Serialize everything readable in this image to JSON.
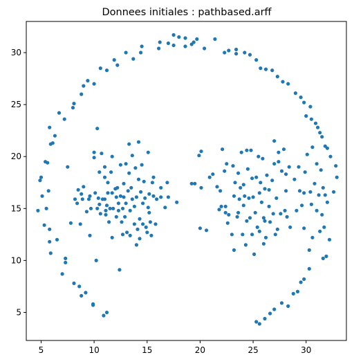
{
  "chart_data": {
    "type": "scatter",
    "title": "Donnees initiales : pathbased.arff",
    "xlabel": "",
    "ylabel": "",
    "xlim": [
      3.6,
      33.8
    ],
    "ylim": [
      2.3,
      33.0
    ],
    "xticks": [
      5,
      10,
      15,
      20,
      25,
      30
    ],
    "yticks": [
      5,
      10,
      15,
      20,
      25,
      30
    ],
    "grid": false,
    "marker_color": "#1f77b4",
    "series": [
      {
        "points": [
          [
            4.7,
            14.8
          ],
          [
            4.9,
            17.7
          ],
          [
            5.0,
            18.0
          ],
          [
            5.1,
            16.2
          ],
          [
            5.3,
            13.4
          ],
          [
            5.4,
            19.5
          ],
          [
            5.5,
            15.0
          ],
          [
            5.6,
            19.4
          ],
          [
            5.7,
            16.7
          ],
          [
            5.8,
            13.0
          ],
          [
            5.8,
            11.8
          ],
          [
            5.9,
            10.7
          ],
          [
            5.8,
            22.8
          ],
          [
            5.9,
            21.2
          ],
          [
            6.1,
            21.3
          ],
          [
            6.3,
            22.0
          ],
          [
            6.5,
            12.0
          ],
          [
            6.7,
            24.2
          ],
          [
            7.0,
            8.7
          ],
          [
            7.2,
            23.6
          ],
          [
            7.3,
            9.8
          ],
          [
            7.3,
            10.2
          ],
          [
            7.5,
            19.0
          ],
          [
            7.8,
            13.6
          ],
          [
            8.0,
            24.7
          ],
          [
            8.1,
            25.1
          ],
          [
            8.1,
            7.8
          ],
          [
            8.2,
            15.9
          ],
          [
            8.4,
            15.5
          ],
          [
            8.5,
            16.8
          ],
          [
            8.6,
            7.5
          ],
          [
            8.7,
            13.5
          ],
          [
            8.8,
            26.0
          ],
          [
            8.8,
            6.6
          ],
          [
            8.8,
            16.4
          ],
          [
            8.9,
            15.9
          ],
          [
            9.0,
            17.1
          ],
          [
            9.0,
            26.8
          ],
          [
            9.2,
            6.9
          ],
          [
            9.3,
            14.7
          ],
          [
            9.4,
            27.3
          ],
          [
            9.5,
            15.9
          ],
          [
            9.6,
            12.4
          ],
          [
            9.6,
            16.2
          ],
          [
            9.7,
            15.0
          ],
          [
            9.9,
            5.8
          ],
          [
            9.9,
            5.7
          ],
          [
            10.0,
            27.0
          ],
          [
            10.0,
            19.9
          ],
          [
            10.0,
            20.4
          ],
          [
            10.1,
            16.5
          ],
          [
            10.2,
            10.0
          ],
          [
            10.3,
            22.7
          ],
          [
            10.3,
            15.0
          ],
          [
            10.4,
            16.0
          ],
          [
            10.5,
            18.5
          ],
          [
            10.5,
            15.4
          ],
          [
            10.6,
            28.5
          ],
          [
            10.6,
            14.5
          ],
          [
            10.7,
            20.3
          ],
          [
            10.8,
            15.9
          ],
          [
            10.9,
            4.7
          ],
          [
            11.0,
            19.0
          ],
          [
            11.0,
            15.9
          ],
          [
            11.0,
            18.0
          ],
          [
            11.1,
            14.8
          ],
          [
            11.1,
            14.4
          ],
          [
            11.2,
            15.3
          ],
          [
            11.2,
            5.0
          ],
          [
            11.2,
            28.3
          ],
          [
            11.3,
            16.5
          ],
          [
            11.3,
            17.5
          ],
          [
            11.4,
            13.7
          ],
          [
            11.5,
            15.0
          ],
          [
            11.6,
            18.5
          ],
          [
            11.7,
            12.2
          ],
          [
            11.7,
            16.5
          ],
          [
            11.7,
            20.0
          ],
          [
            11.8,
            15.0
          ],
          [
            11.9,
            29.3
          ],
          [
            12.0,
            16.9
          ],
          [
            12.1,
            14.2
          ],
          [
            12.1,
            16.1
          ],
          [
            12.2,
            28.8
          ],
          [
            12.2,
            17.0
          ],
          [
            12.3,
            14.8
          ],
          [
            12.3,
            15.5
          ],
          [
            12.4,
            9.1
          ],
          [
            12.5,
            16.2
          ],
          [
            12.5,
            19.2
          ],
          [
            12.6,
            13.7
          ],
          [
            12.7,
            15.0
          ],
          [
            12.7,
            12.5
          ],
          [
            12.8,
            17.4
          ],
          [
            12.8,
            16.1
          ],
          [
            12.9,
            14.2
          ],
          [
            13.0,
            15.5
          ],
          [
            13.0,
            19.3
          ],
          [
            13.0,
            30.0
          ],
          [
            13.1,
            12.7
          ],
          [
            13.2,
            16.7
          ],
          [
            13.3,
            21.2
          ],
          [
            13.3,
            18.4
          ],
          [
            13.4,
            14.8
          ],
          [
            13.4,
            12.4
          ],
          [
            13.5,
            17.0
          ],
          [
            13.6,
            20.1
          ],
          [
            13.6,
            15.9
          ],
          [
            13.7,
            29.4
          ],
          [
            13.8,
            15.2
          ],
          [
            13.8,
            13.5
          ],
          [
            13.9,
            18.9
          ],
          [
            14.0,
            11.5
          ],
          [
            14.0,
            16.1
          ],
          [
            14.1,
            13.0
          ],
          [
            14.2,
            21.4
          ],
          [
            14.2,
            17.8
          ],
          [
            14.3,
            14.0
          ],
          [
            14.3,
            12.1
          ],
          [
            14.4,
            16.6
          ],
          [
            14.4,
            30.0
          ],
          [
            14.5,
            30.6
          ],
          [
            14.5,
            19.2
          ],
          [
            14.6,
            13.5
          ],
          [
            14.6,
            15.5
          ],
          [
            14.7,
            17.6
          ],
          [
            14.8,
            16.0
          ],
          [
            14.9,
            13.2
          ],
          [
            15.0,
            12.7
          ],
          [
            15.1,
            15.1
          ],
          [
            15.1,
            20.4
          ],
          [
            15.2,
            16.4
          ],
          [
            15.2,
            14.6
          ],
          [
            15.3,
            13.7
          ],
          [
            15.4,
            12.4
          ],
          [
            15.5,
            17.5
          ],
          [
            15.6,
            18.0
          ],
          [
            15.6,
            16.2
          ],
          [
            15.8,
            13.5
          ],
          [
            15.9,
            15.9
          ],
          [
            16.1,
            30.4
          ],
          [
            16.2,
            31.0
          ],
          [
            16.3,
            17.0
          ],
          [
            16.3,
            16.1
          ],
          [
            16.7,
            15.1
          ],
          [
            16.9,
            17.5
          ],
          [
            17.0,
            16.1
          ],
          [
            17.5,
            30.7
          ],
          [
            17.5,
            31.7
          ],
          [
            17.8,
            15.6
          ],
          [
            18.0,
            31.5
          ],
          [
            18.6,
            30.6
          ],
          [
            19.2,
            17.4
          ],
          [
            19.4,
            31.0
          ],
          [
            19.5,
            17.4
          ],
          [
            19.7,
            31.3
          ],
          [
            19.9,
            20.1
          ],
          [
            20.0,
            13.1
          ],
          [
            20.1,
            20.5
          ],
          [
            20.1,
            17.0
          ],
          [
            20.4,
            30.4
          ],
          [
            20.6,
            12.9
          ],
          [
            20.9,
            18.0
          ],
          [
            21.2,
            18.3
          ],
          [
            21.4,
            31.3
          ],
          [
            21.6,
            17.1
          ],
          [
            21.8,
            14.9
          ],
          [
            21.9,
            16.7
          ],
          [
            22.0,
            15.2
          ],
          [
            22.1,
            20.7
          ],
          [
            22.3,
            18.6
          ],
          [
            22.4,
            15.2
          ],
          [
            22.4,
            14.6
          ],
          [
            22.5,
            19.3
          ],
          [
            22.6,
            13.6
          ],
          [
            22.7,
            14.4
          ],
          [
            23.0,
            12.5
          ],
          [
            23.1,
            19.1
          ],
          [
            23.2,
            16.2
          ],
          [
            23.2,
            11.0
          ],
          [
            23.3,
            17.5
          ],
          [
            23.4,
            30.3
          ],
          [
            23.5,
            14.2
          ],
          [
            23.6,
            18.4
          ],
          [
            23.6,
            14.6
          ],
          [
            23.7,
            15.9
          ],
          [
            23.8,
            17.0
          ],
          [
            23.9,
            20.4
          ],
          [
            24.0,
            12.5
          ],
          [
            24.1,
            17.3
          ],
          [
            24.1,
            15.3
          ],
          [
            24.2,
            16.2
          ],
          [
            24.3,
            11.5
          ],
          [
            24.4,
            13.8
          ],
          [
            24.4,
            20.6
          ],
          [
            24.5,
            18.8
          ],
          [
            24.6,
            16.0
          ],
          [
            24.7,
            14.1
          ],
          [
            24.8,
            20.6
          ],
          [
            24.9,
            17.9
          ],
          [
            24.9,
            12.5
          ],
          [
            25.0,
            16.1
          ],
          [
            25.1,
            10.6
          ],
          [
            25.2,
            14.6
          ],
          [
            25.3,
            18.0
          ],
          [
            25.4,
            13.2
          ],
          [
            25.5,
            20.0
          ],
          [
            25.6,
            16.5
          ],
          [
            25.6,
            12.8
          ],
          [
            25.7,
            17.5
          ],
          [
            25.8,
            15.6
          ],
          [
            25.9,
            19.8
          ],
          [
            26.0,
            11.6
          ],
          [
            26.0,
            14.1
          ],
          [
            26.1,
            16.9
          ],
          [
            26.1,
            13.8
          ],
          [
            26.2,
            12.2
          ],
          [
            26.3,
            18.2
          ],
          [
            26.5,
            16.8
          ],
          [
            26.5,
            15.2
          ],
          [
            26.6,
            13.7
          ],
          [
            26.8,
            17.7
          ],
          [
            26.9,
            14.5
          ],
          [
            27.0,
            19.3
          ],
          [
            27.0,
            21.5
          ],
          [
            27.1,
            12.5
          ],
          [
            27.2,
            16.0
          ],
          [
            27.3,
            13.0
          ],
          [
            27.4,
            20.4
          ],
          [
            27.4,
            19.5
          ],
          [
            27.6,
            14.5
          ],
          [
            27.7,
            18.6
          ],
          [
            27.9,
            20.7
          ],
          [
            28.0,
            14.8
          ],
          [
            28.1,
            16.7
          ],
          [
            28.1,
            18.3
          ],
          [
            28.2,
            14.2
          ],
          [
            28.4,
            19.0
          ],
          [
            28.5,
            13.2
          ],
          [
            28.9,
            17.8
          ],
          [
            29.1,
            14.8
          ],
          [
            29.3,
            19.0
          ],
          [
            29.4,
            16.7
          ],
          [
            29.6,
            15.3
          ],
          [
            29.8,
            16.5
          ],
          [
            29.8,
            13.1
          ],
          [
            29.9,
            18.5
          ],
          [
            30.1,
            20.2
          ],
          [
            30.3,
            11.0
          ],
          [
            30.4,
            16.6
          ],
          [
            30.5,
            15.4
          ],
          [
            30.6,
            12.2
          ],
          [
            30.8,
            17.4
          ],
          [
            31.0,
            14.8
          ],
          [
            31.0,
            19.3
          ],
          [
            31.2,
            16.3
          ],
          [
            31.3,
            12.8
          ],
          [
            31.5,
            14.4
          ],
          [
            31.6,
            17.0
          ],
          [
            31.7,
            13.2
          ],
          [
            31.8,
            16.3
          ],
          [
            32.0,
            15.6
          ],
          [
            32.2,
            12.0
          ],
          [
            32.6,
            16.6
          ],
          [
            32.8,
            19.1
          ],
          [
            32.9,
            18.0
          ]
        ]
      },
      {
        "points": [
          [
            17.0,
            30.9
          ],
          [
            18.6,
            31.4
          ],
          [
            19.2,
            30.8
          ],
          [
            22.3,
            30.0
          ],
          [
            22.7,
            30.2
          ],
          [
            23.4,
            29.9
          ],
          [
            24.2,
            30.0
          ],
          [
            24.7,
            29.8
          ],
          [
            25.3,
            29.3
          ],
          [
            25.7,
            28.5
          ],
          [
            26.2,
            28.4
          ],
          [
            26.8,
            28.3
          ],
          [
            27.3,
            27.7
          ],
          [
            27.8,
            27.2
          ],
          [
            28.3,
            27.0
          ],
          [
            29.0,
            26.1
          ],
          [
            29.5,
            25.7
          ],
          [
            29.8,
            25.2
          ],
          [
            30.4,
            24.8
          ],
          [
            30.9,
            23.2
          ],
          [
            31.1,
            22.8
          ],
          [
            31.3,
            22.3
          ],
          [
            31.5,
            21.9
          ],
          [
            31.8,
            21.0
          ],
          [
            32.0,
            20.8
          ],
          [
            32.3,
            20.0
          ],
          [
            30.6,
            20.9
          ],
          [
            31.4,
            18.7
          ],
          [
            31.6,
            10.2
          ],
          [
            31.9,
            10.4
          ],
          [
            30.3,
            9.2
          ],
          [
            29.8,
            8.2
          ],
          [
            29.5,
            7.9
          ],
          [
            29.2,
            7.0
          ],
          [
            28.8,
            6.8
          ],
          [
            28.3,
            5.6
          ],
          [
            27.7,
            5.9
          ],
          [
            27.0,
            5.3
          ],
          [
            26.6,
            4.9
          ],
          [
            26.1,
            4.4
          ],
          [
            25.6,
            3.9
          ],
          [
            25.3,
            4.1
          ],
          [
            30.0,
            23.9
          ],
          [
            30.5,
            23.6
          ]
        ]
      }
    ]
  }
}
